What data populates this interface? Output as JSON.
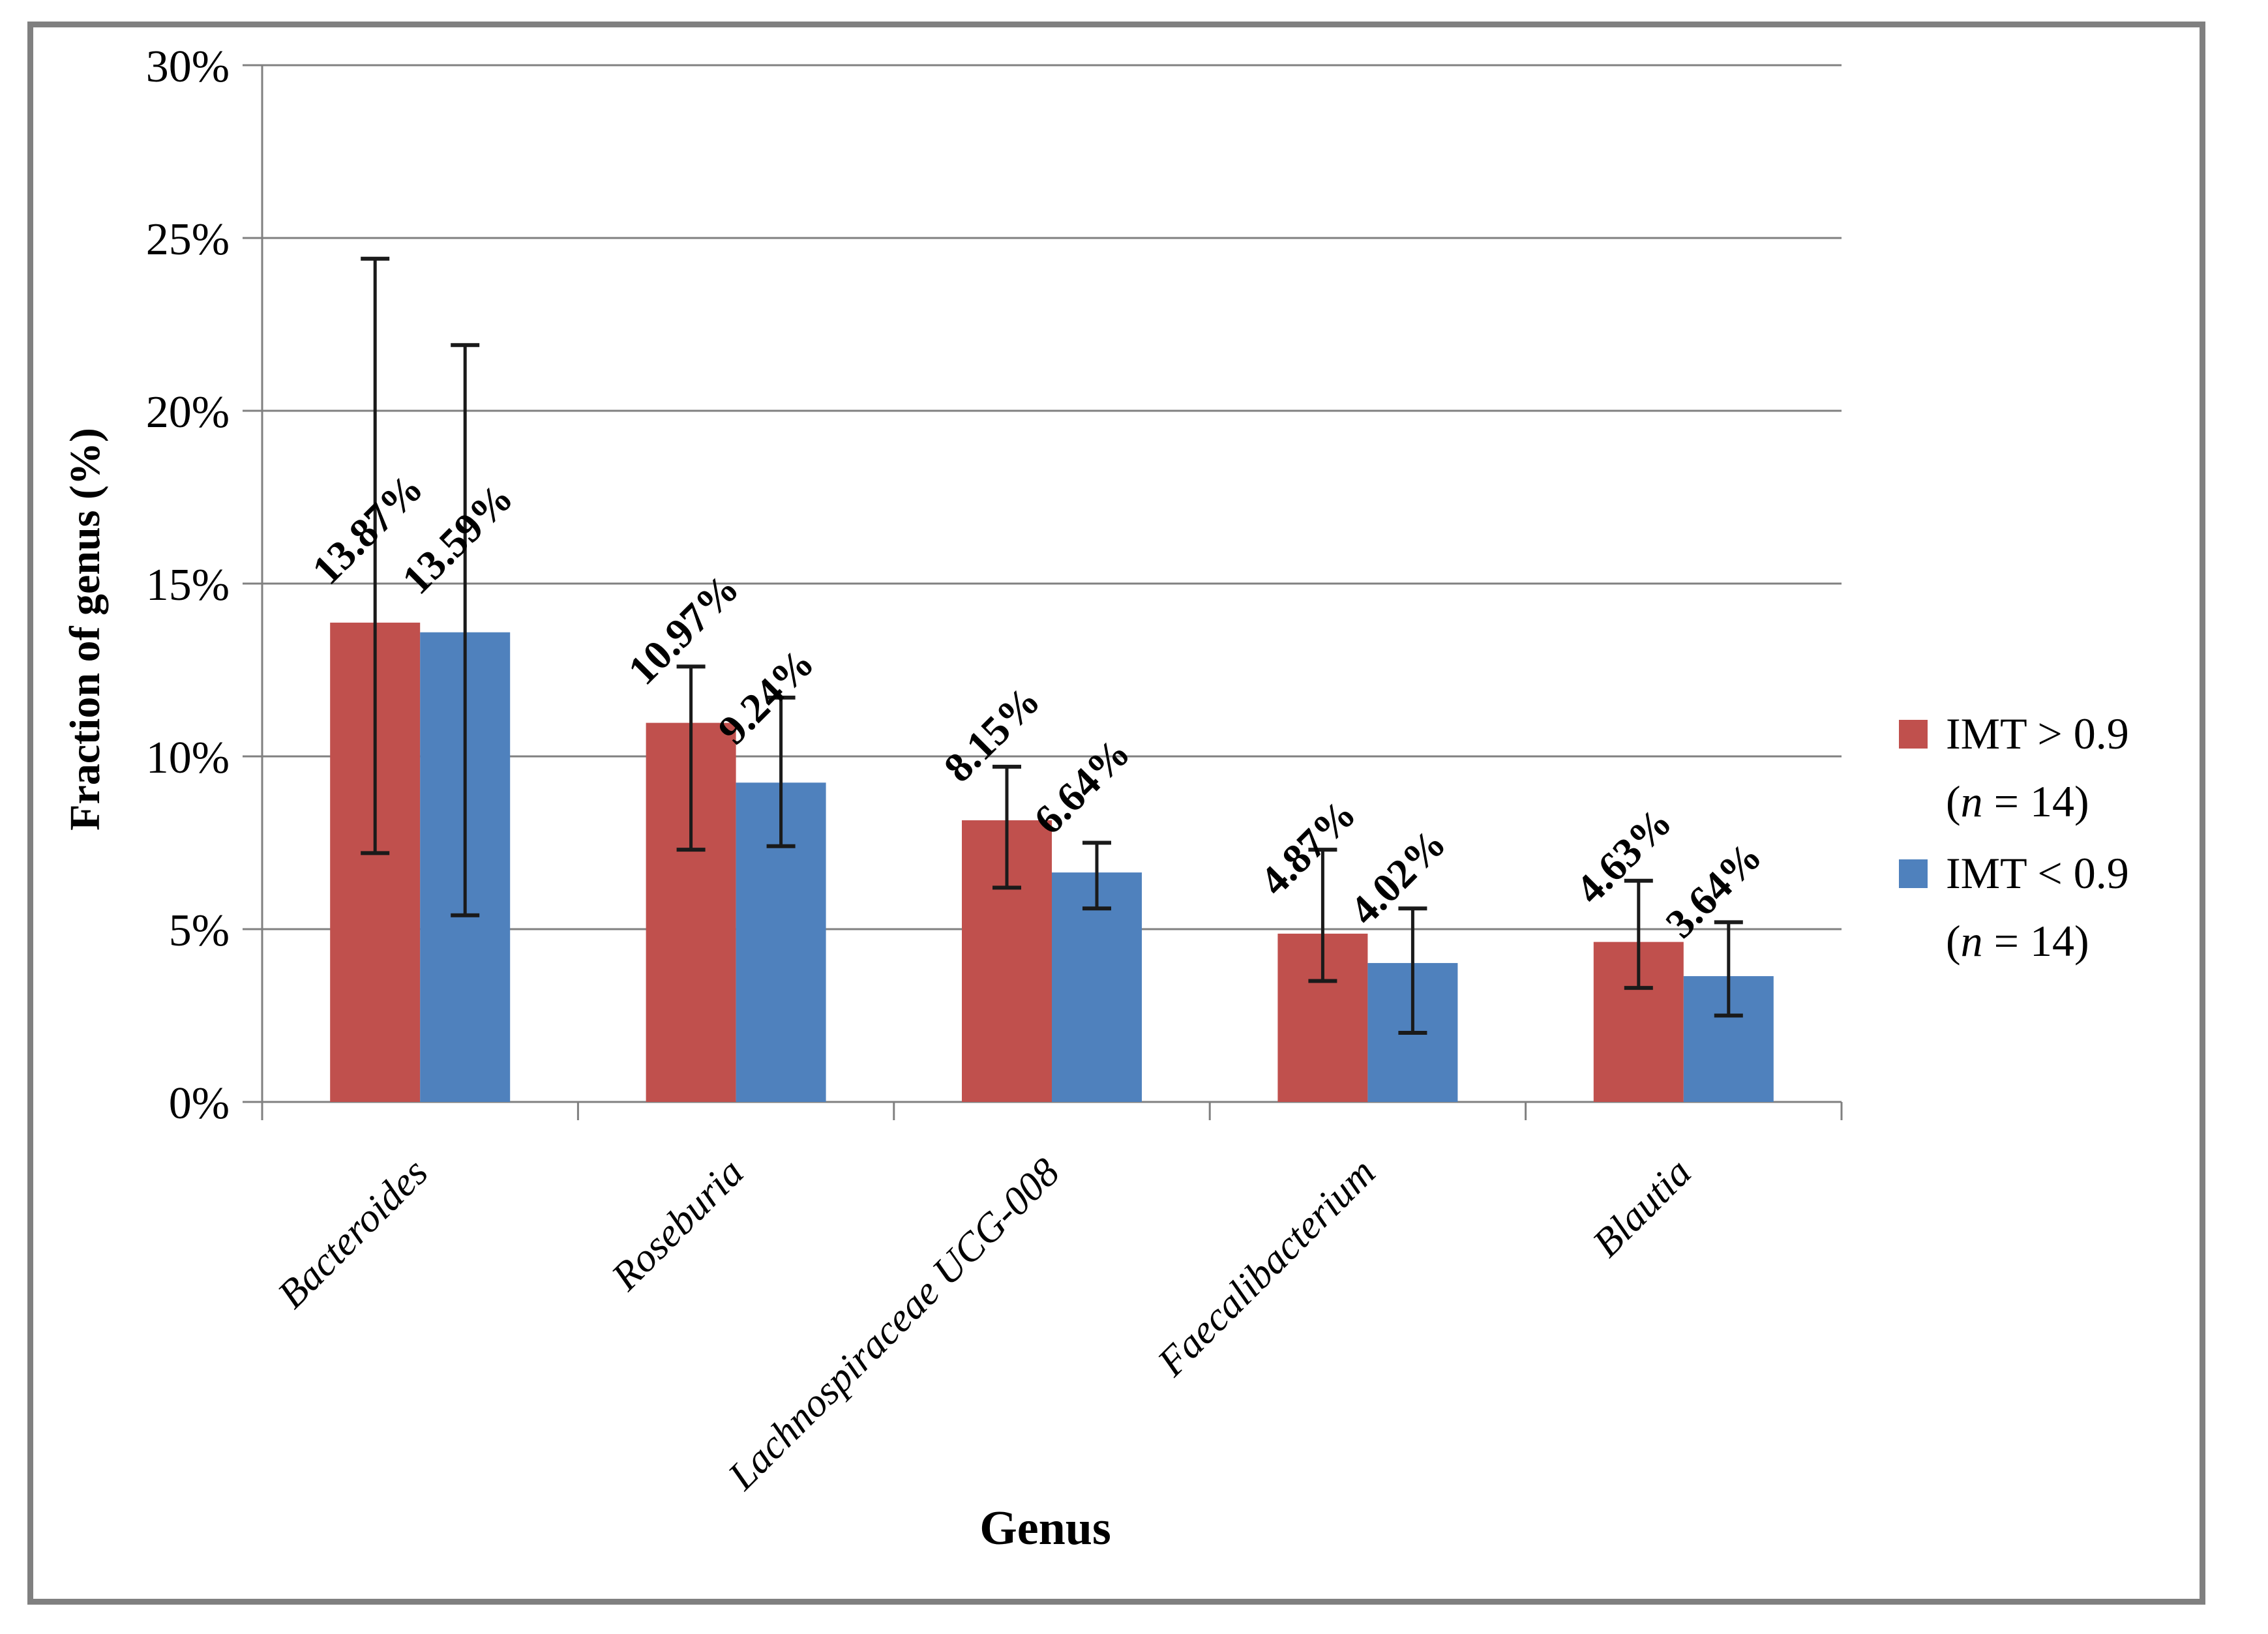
{
  "figure": {
    "background": "#ffffff",
    "border_color": "#808080"
  },
  "chart_data": {
    "type": "bar",
    "title": "",
    "xlabel": "Genus",
    "ylabel": "Fraction of genus (%)",
    "categories": [
      "Bacteroides",
      "Roseburia",
      "Lachnospiraceae UCG-008",
      "Faecalibacterium",
      "Blautia"
    ],
    "y_ticks": [
      "0%",
      "5%",
      "10%",
      "15%",
      "20%",
      "25%",
      "30%"
    ],
    "y_tick_values": [
      0,
      5,
      10,
      15,
      20,
      25,
      30
    ],
    "ylim": [
      0,
      30
    ],
    "grid": true,
    "legend_position": "right",
    "axis_color": "#808080",
    "error_bar_color": "#1a1a1a",
    "series": [
      {
        "name": "IMT > 0.9 (n = 14)",
        "key": "imt-gt-09",
        "legend_lines": [
          "IMT > 0.9",
          "(n = 14)"
        ],
        "color": "#C0504D",
        "values": [
          13.87,
          10.97,
          8.15,
          4.87,
          4.63
        ],
        "data_labels": [
          "13.87%",
          "10.97%",
          "8.15%",
          "4.87%",
          "4.63%"
        ],
        "error_high": [
          24.4,
          12.6,
          9.7,
          7.3,
          6.4
        ],
        "error_low": [
          7.2,
          7.3,
          6.2,
          3.5,
          3.3
        ]
      },
      {
        "name": "IMT < 0.9 (n = 14)",
        "key": "imt-lt-09",
        "legend_lines": [
          "IMT < 0.9",
          "(n = 14)"
        ],
        "color": "#4F81BD",
        "values": [
          13.59,
          9.24,
          6.64,
          4.02,
          3.64
        ],
        "data_labels": [
          "13.59%",
          "9.24%",
          "6.64%",
          "4.02%",
          "3.64%"
        ],
        "error_high": [
          21.9,
          11.7,
          7.5,
          5.6,
          5.2
        ],
        "error_low": [
          5.4,
          7.4,
          5.6,
          2.0,
          2.5
        ]
      }
    ]
  }
}
